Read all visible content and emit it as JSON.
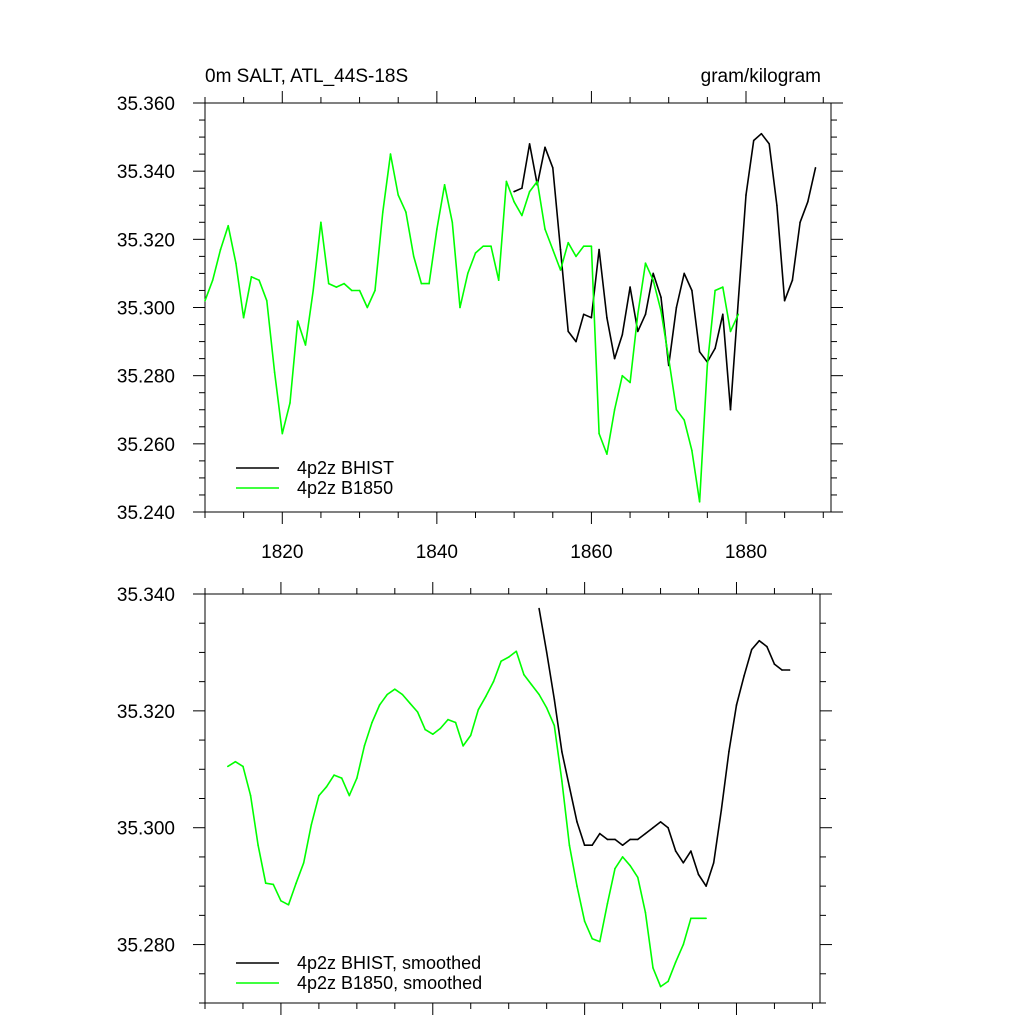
{
  "colors": {
    "bhist": "#000000",
    "b1850": "#00ff00"
  },
  "chart_data": [
    {
      "type": "line",
      "title_left": "0m SALT, ATL_44S-18S",
      "title_right": "gram/kilogram",
      "xlim": [
        1810,
        1891
      ],
      "ylim": [
        35.24,
        35.36
      ],
      "x_ticks": [
        1820,
        1840,
        1860,
        1880
      ],
      "y_ticks": [
        35.24,
        35.26,
        35.28,
        35.3,
        35.32,
        35.34,
        35.36
      ],
      "y_tick_labels": [
        "35.240",
        "35.260",
        "35.280",
        "35.300",
        "35.320",
        "35.340",
        "35.360"
      ],
      "x_tick_labels": [
        "1820",
        "1840",
        "1860",
        "1880"
      ],
      "legend_position": "bottom-left",
      "series": [
        {
          "name": "4p2z BHIST",
          "color": "#000000",
          "x": [
            1850,
            1851,
            1852,
            1853,
            1854,
            1855,
            1856,
            1857,
            1858,
            1859,
            1860,
            1861,
            1862,
            1863,
            1864,
            1865,
            1866,
            1867,
            1868,
            1869,
            1870,
            1871,
            1872,
            1873,
            1874,
            1875,
            1876,
            1877,
            1878,
            1879,
            1880,
            1881,
            1882,
            1883,
            1884,
            1885,
            1886,
            1887,
            1888,
            1889
          ],
          "y": [
            35.334,
            35.335,
            35.348,
            35.336,
            35.347,
            35.341,
            35.317,
            35.293,
            35.29,
            35.298,
            35.297,
            35.317,
            35.297,
            35.285,
            35.292,
            35.306,
            35.293,
            35.298,
            35.31,
            35.303,
            35.283,
            35.3,
            35.31,
            35.305,
            35.287,
            35.284,
            35.288,
            35.298,
            35.27,
            35.302,
            35.333,
            35.349,
            35.351,
            35.348,
            35.33,
            35.302,
            35.308,
            35.325,
            35.331,
            35.341
          ]
        },
        {
          "name": "4p2z B1850",
          "color": "#00ff00",
          "x": [
            1810,
            1811,
            1812,
            1813,
            1814,
            1815,
            1816,
            1817,
            1818,
            1819,
            1820,
            1821,
            1822,
            1823,
            1824,
            1825,
            1826,
            1827,
            1828,
            1829,
            1830,
            1831,
            1832,
            1833,
            1834,
            1835,
            1836,
            1837,
            1838,
            1839,
            1840,
            1841,
            1842,
            1843,
            1844,
            1845,
            1846,
            1847,
            1848,
            1849,
            1850,
            1851,
            1852,
            1853,
            1854,
            1855,
            1856,
            1857,
            1858,
            1859,
            1860,
            1861,
            1862,
            1863,
            1864,
            1865,
            1866,
            1867,
            1868,
            1869,
            1870,
            1871,
            1872,
            1873,
            1874,
            1875,
            1876,
            1877,
            1878,
            1879
          ],
          "y": [
            35.302,
            35.308,
            35.317,
            35.324,
            35.313,
            35.297,
            35.309,
            35.308,
            35.302,
            35.281,
            35.263,
            35.272,
            35.296,
            35.289,
            35.305,
            35.325,
            35.307,
            35.306,
            35.307,
            35.305,
            35.305,
            35.3,
            35.305,
            35.328,
            35.345,
            35.333,
            35.328,
            35.315,
            35.307,
            35.307,
            35.323,
            35.336,
            35.325,
            35.3,
            35.31,
            35.316,
            35.318,
            35.318,
            35.308,
            35.337,
            35.331,
            35.327,
            35.334,
            35.337,
            35.323,
            35.317,
            35.311,
            35.319,
            35.315,
            35.318,
            35.318,
            35.263,
            35.257,
            35.27,
            35.28,
            35.278,
            35.298,
            35.313,
            35.308,
            35.299,
            35.285,
            35.27,
            35.267,
            35.258,
            35.243,
            35.283,
            35.305,
            35.306,
            35.293,
            35.298
          ]
        }
      ]
    },
    {
      "type": "line",
      "xlim": [
        1810,
        1891
      ],
      "ylim": [
        35.27,
        35.34
      ],
      "x_ticks": [
        1820,
        1840,
        1860,
        1880
      ],
      "y_ticks": [
        35.28,
        35.3,
        35.32,
        35.34
      ],
      "y_tick_labels": [
        "35.280",
        "35.300",
        "35.320",
        "35.340"
      ],
      "legend_position": "bottom-left",
      "series": [
        {
          "name": "4p2z BHIST, smoothed",
          "color": "#000000",
          "x": [
            1854,
            1855,
            1856,
            1857,
            1858,
            1859,
            1860,
            1861,
            1862,
            1863,
            1864,
            1865,
            1866,
            1867,
            1868,
            1869,
            1870,
            1871,
            1872,
            1873,
            1874,
            1875,
            1876,
            1877,
            1878,
            1879,
            1880,
            1881,
            1882,
            1883,
            1884,
            1885,
            1886,
            1887
          ],
          "y": [
            35.3375,
            35.33,
            35.322,
            35.313,
            35.307,
            35.301,
            35.297,
            35.297,
            35.299,
            35.298,
            35.298,
            35.297,
            35.298,
            35.298,
            35.299,
            35.3,
            35.301,
            35.3,
            35.296,
            35.294,
            35.296,
            35.292,
            35.29,
            35.294,
            35.303,
            35.313,
            35.321,
            35.326,
            35.3305,
            35.332,
            35.331,
            35.328,
            35.327,
            35.327
          ]
        },
        {
          "name": "4p2z B1850, smoothed",
          "color": "#00ff00",
          "x": [
            1813,
            1814,
            1815,
            1816,
            1817,
            1818,
            1819,
            1820,
            1821,
            1822,
            1823,
            1824,
            1825,
            1826,
            1827,
            1828,
            1829,
            1830,
            1831,
            1832,
            1833,
            1834,
            1835,
            1836,
            1837,
            1838,
            1839,
            1840,
            1841,
            1842,
            1843,
            1844,
            1845,
            1846,
            1847,
            1848,
            1849,
            1850,
            1851,
            1852,
            1853,
            1854,
            1855,
            1856,
            1857,
            1858,
            1859,
            1860,
            1861,
            1862,
            1863,
            1864,
            1865,
            1866,
            1867,
            1868,
            1869,
            1870,
            1871,
            1872,
            1873,
            1874,
            1875,
            1876
          ],
          "y": [
            35.3105,
            35.3113,
            35.3105,
            35.3055,
            35.297,
            35.2905,
            35.2903,
            35.2875,
            35.2868,
            35.2905,
            35.294,
            35.3005,
            35.3055,
            35.307,
            35.309,
            35.3085,
            35.3055,
            35.3085,
            35.314,
            35.318,
            35.321,
            35.3228,
            35.3237,
            35.3228,
            35.3213,
            35.3198,
            35.3168,
            35.316,
            35.317,
            35.3185,
            35.318,
            35.314,
            35.3158,
            35.3202,
            35.3225,
            35.325,
            35.3285,
            35.3292,
            35.3302,
            35.3262,
            35.3245,
            35.3228,
            35.3205,
            35.3175,
            35.308,
            35.297,
            35.29,
            35.284,
            35.281,
            35.2805,
            35.287,
            35.293,
            35.295,
            35.2935,
            35.2915,
            35.2855,
            35.276,
            35.2728,
            35.2737,
            35.277,
            35.28,
            35.2845,
            35.2845,
            35.2845
          ]
        }
      ]
    }
  ]
}
